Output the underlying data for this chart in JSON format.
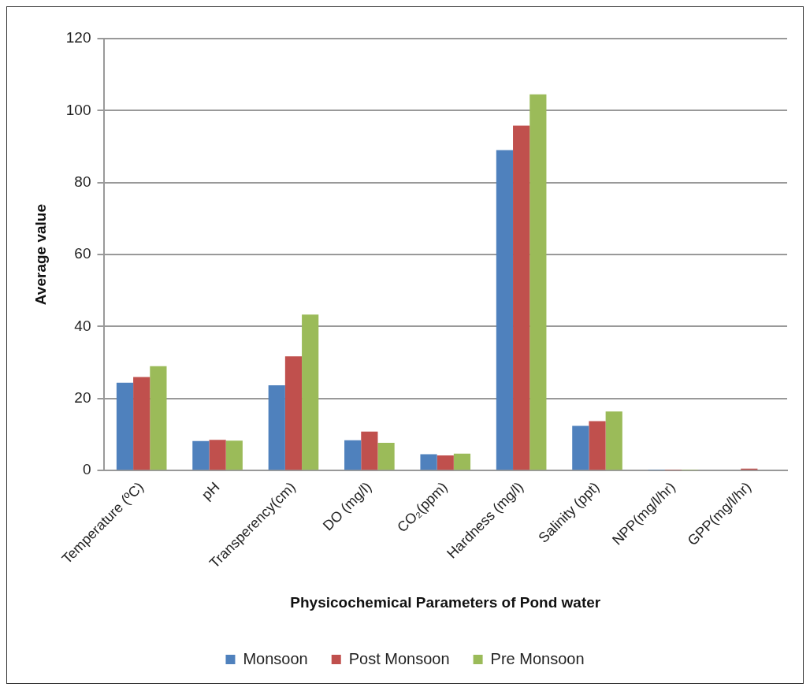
{
  "chart_data": {
    "type": "bar",
    "xlabel": "Physicochemical Parameters of Pond water",
    "ylabel": "Average value",
    "categories": [
      "Temperature (ºC)",
      "pH",
      "Transperency(cm)",
      "DO (mg/l)",
      "CO₂(ppm)",
      "Hardness (mg/l)",
      "Salinity (ppt)",
      "NPP(mg/l/hr)",
      "GPP(mg/l/hr)"
    ],
    "series": [
      {
        "name": "Monsoon",
        "color": "#4f81bd",
        "values": [
          24.4,
          8.2,
          23.7,
          8.4,
          4.5,
          89,
          12.4,
          0.1,
          0.2
        ]
      },
      {
        "name": "Post Monsoon",
        "color": "#c0504d",
        "values": [
          26,
          8.5,
          31.7,
          10.8,
          4.2,
          95.8,
          13.7,
          0.1,
          0.5
        ]
      },
      {
        "name": "Pre Monsoon",
        "color": "#9bbb59",
        "values": [
          29,
          8.3,
          43.3,
          7.7,
          4.7,
          104.5,
          16.4,
          0.1,
          0.2
        ]
      }
    ],
    "ylim": [
      0,
      120
    ],
    "yticks": [
      0,
      20,
      40,
      60,
      80,
      100,
      120
    ],
    "grid": "y",
    "legend": "bottom"
  }
}
